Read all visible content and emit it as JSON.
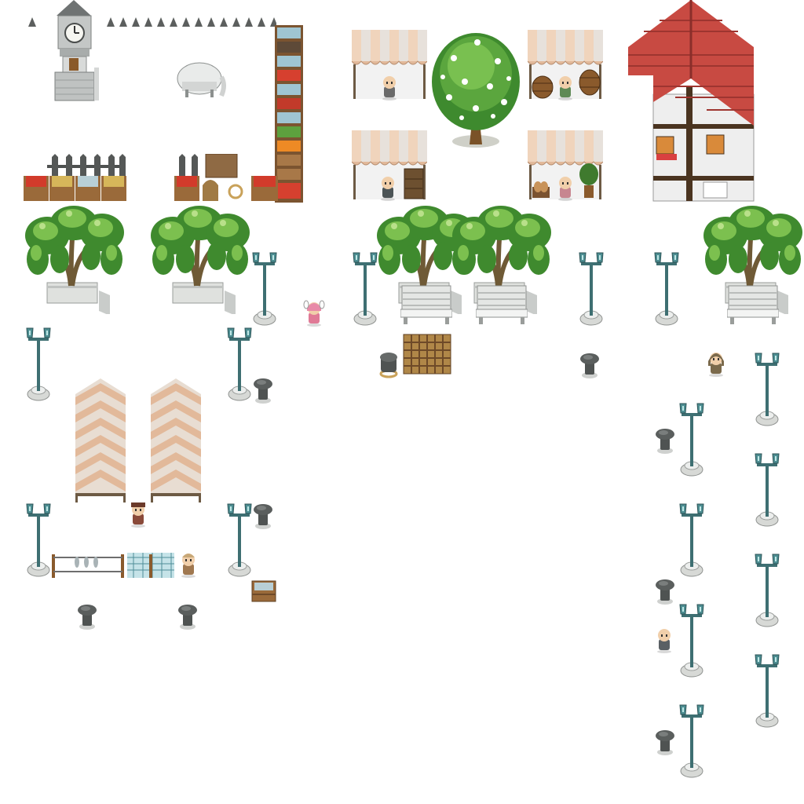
{
  "scene": {
    "type": "rpg-tileset-sheet",
    "theme": "town market plaza",
    "background_color": "#ffffff"
  },
  "sprites": {
    "clock_tower": {
      "icon": "clock-tower-icon",
      "clock_time": "12:15"
    },
    "fence_spikes": {
      "icon": "spiked-fence-icon"
    },
    "round_table": {
      "icon": "round-table-icon"
    },
    "produce_shelf": {
      "icon": "produce-shelf-icon",
      "goods": [
        "fish",
        "barrels",
        "fish",
        "tomatoes",
        "apples",
        "fish",
        "greens",
        "oranges",
        "crates",
        "crates",
        "apples"
      ]
    },
    "iron_fence_crates_left": {
      "icon": "iron-fence-icon",
      "goods": [
        "tomatoes",
        "hay",
        "fish",
        "hay"
      ]
    },
    "iron_fence_crates_right": {
      "icon": "iron-fence-icon",
      "goods": [
        "tomatoes",
        "sack",
        "rope",
        "tomatoes"
      ]
    },
    "market_stalls": [
      {
        "icon": "striped-market-stall-icon",
        "vendor": "grey-hair-vendor"
      },
      {
        "icon": "striped-market-stall-icon",
        "vendor": "green-hair-vendor",
        "goods": [
          "barrel",
          "barrel"
        ]
      },
      {
        "icon": "striped-market-stall-icon",
        "vendor": "hooded-vendor",
        "goods": [
          "shelf"
        ]
      },
      {
        "icon": "striped-market-stall-icon",
        "vendor": "pink-hat-vendor",
        "goods": [
          "bread",
          "potted-plant"
        ]
      }
    ],
    "flowering_tree": {
      "icon": "flowering-tree-icon"
    },
    "timber_house": {
      "icon": "timber-frame-house-icon",
      "roof_color": "#c94a44"
    },
    "planter_trees": [
      {
        "icon": "willow-tree-planter-icon"
      },
      {
        "icon": "willow-tree-planter-icon"
      },
      {
        "icon": "willow-tree-planter-icon"
      },
      {
        "icon": "willow-tree-planter-icon"
      },
      {
        "icon": "willow-tree-planter-icon"
      }
    ],
    "benches": [
      {
        "icon": "bench-icon"
      },
      {
        "icon": "bench-icon"
      },
      {
        "icon": "bench-icon"
      }
    ],
    "street_lamps": {
      "icon": "street-lamp-icon",
      "color": "#3e7a7e"
    },
    "bollards": {
      "icon": "bollard-icon"
    },
    "tent_walls": [
      {
        "icon": "striped-tent-wall-icon"
      },
      {
        "icon": "striped-tent-wall-icon"
      }
    ],
    "drying_rack": {
      "icon": "fish-drying-rack-icon"
    },
    "fishing_net": {
      "icon": "fishing-net-icon"
    },
    "fish_crate": {
      "icon": "fish-crate-icon"
    },
    "cargo_cart": {
      "icon": "cargo-net-cart-icon"
    },
    "rope_coil": {
      "icon": "rope-coil-icon"
    },
    "characters": [
      {
        "name": "pink-hair-girl",
        "icon": "pink-hair-girl-icon"
      },
      {
        "name": "hooded-traveler",
        "icon": "hooded-traveler-icon"
      },
      {
        "name": "merchant",
        "icon": "merchant-icon"
      },
      {
        "name": "fisherman",
        "icon": "fisherman-icon"
      },
      {
        "name": "bald-elder",
        "icon": "bald-elder-icon"
      }
    ]
  }
}
